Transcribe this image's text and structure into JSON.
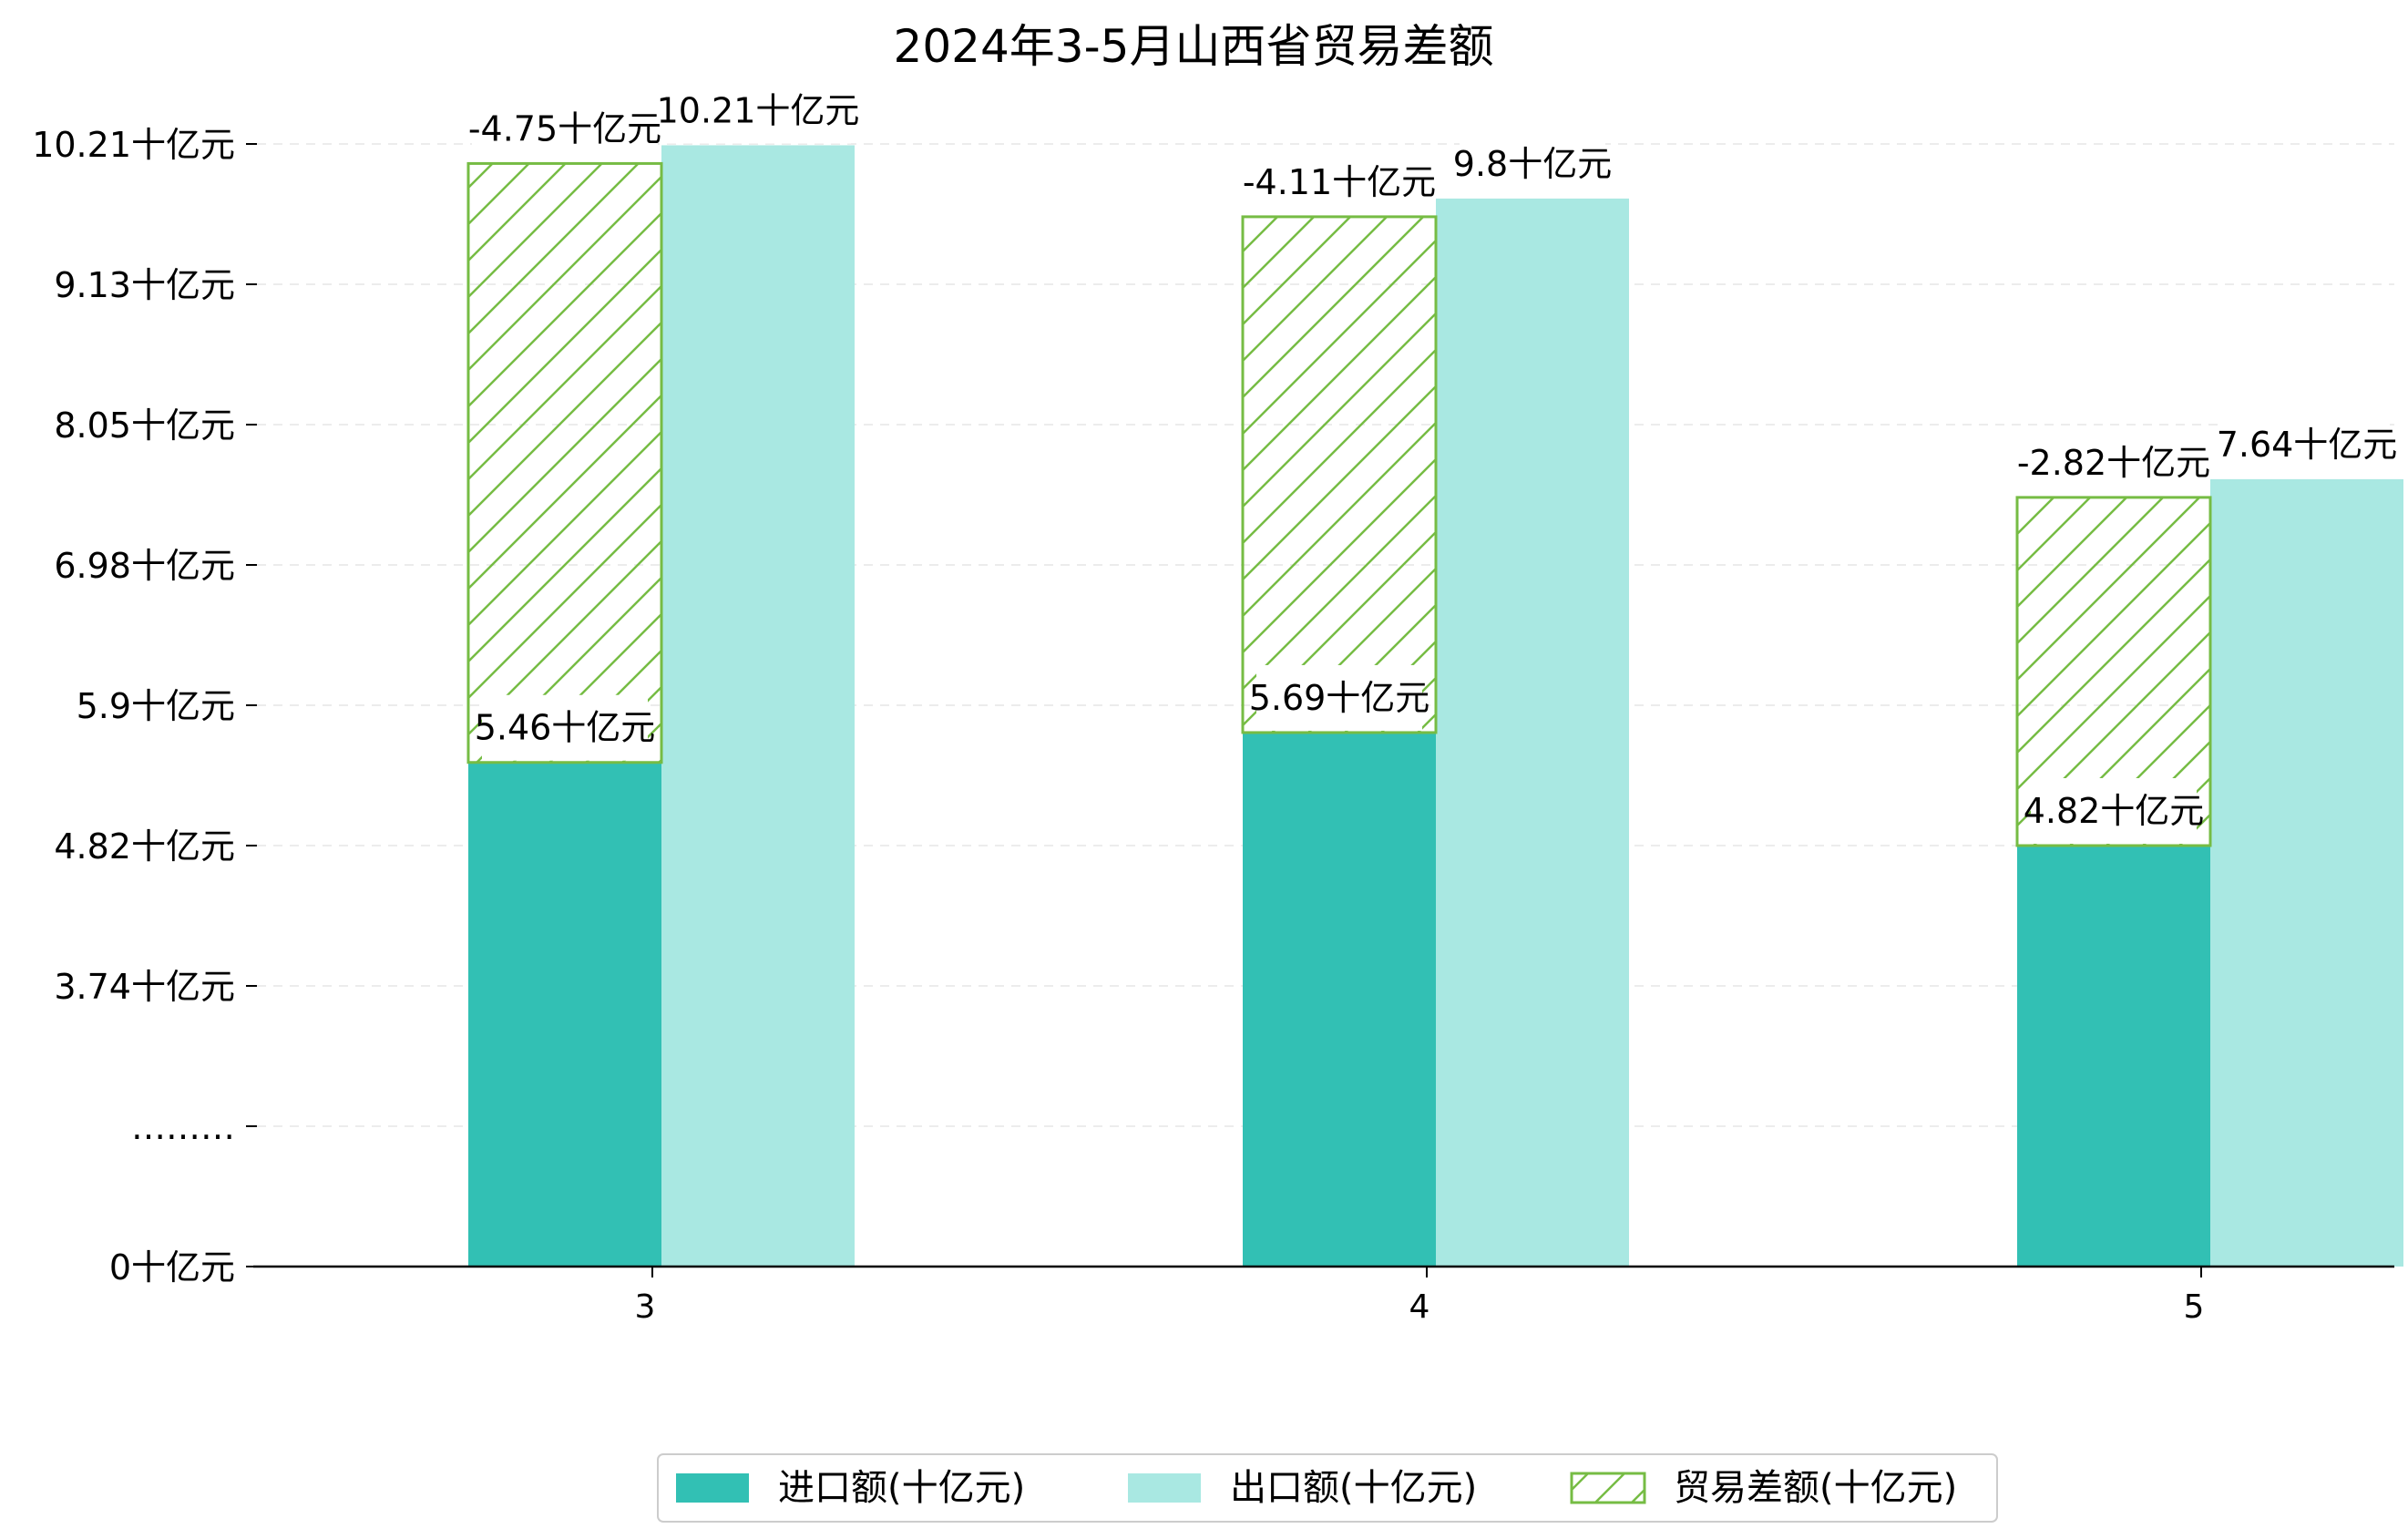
{
  "chart_data": {
    "type": "bar",
    "title": "2024年3-5月山西省贸易差额",
    "xlabel": "",
    "ylabel": "",
    "unit": "十亿元",
    "categories": [
      "3",
      "4",
      "5"
    ],
    "series": [
      {
        "name": "进口额(十亿元)",
        "values": [
          5.46,
          5.69,
          4.82
        ],
        "labels": [
          "5.46十亿元",
          "5.69十亿元",
          "4.82十亿元"
        ],
        "color": "#32c0b4"
      },
      {
        "name": "出口额(十亿元)",
        "values": [
          10.21,
          9.8,
          7.64
        ],
        "labels": [
          "10.21十亿元",
          "9.8十亿元",
          "7.64十亿元"
        ],
        "color": "#a9e8e2"
      },
      {
        "name": "贸易差额(十亿元)",
        "values": [
          -4.75,
          -4.11,
          -2.82
        ],
        "labels": [
          "-4.75十亿元",
          "-4.11十亿元",
          "-2.82十亿元"
        ],
        "color": "#76bc44",
        "hatch": true
      }
    ],
    "yticks": [
      {
        "label": "0十亿元"
      },
      {
        "label": "………"
      },
      {
        "label": "3.74十亿元"
      },
      {
        "label": "4.82十亿元"
      },
      {
        "label": "5.9十亿元"
      },
      {
        "label": "6.98十亿元"
      },
      {
        "label": "8.05十亿元"
      },
      {
        "label": "9.13十亿元"
      },
      {
        "label": "10.21十亿元"
      }
    ],
    "axis_break": {
      "break_value": 2.66,
      "tick_step": 1.08
    },
    "grid": true,
    "legend_position": "bottom-center"
  }
}
